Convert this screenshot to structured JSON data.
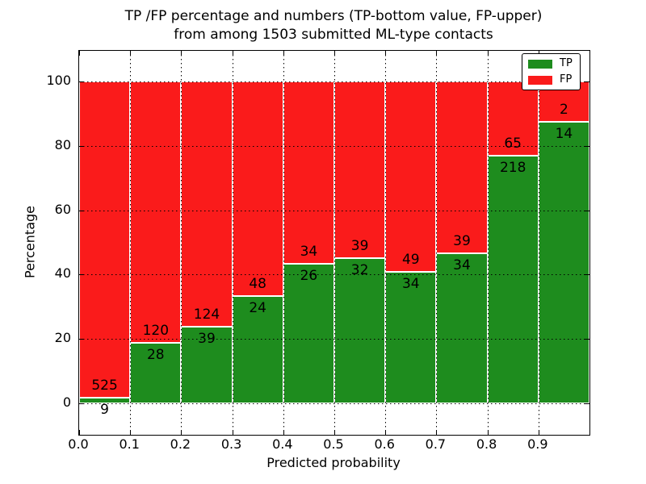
{
  "title": {
    "line1": "TP /FP percentage and numbers (TP-bottom value, FP-upper)",
    "line2": "from among 1503 submitted ML-type contacts"
  },
  "chart_data": {
    "type": "bar",
    "stacked": true,
    "normalized_to_percent": true,
    "total_submitted": 1503,
    "title": "TP /FP percentage and numbers (TP-bottom value, FP-upper) from among 1503 submitted ML-type contacts",
    "xlabel": "Predicted probability",
    "ylabel": "Percentage",
    "x_bin_edges": [
      0.0,
      0.1,
      0.2,
      0.3,
      0.4,
      0.5,
      0.6,
      0.7,
      0.8,
      0.9,
      1.0
    ],
    "xtick_labels": [
      "0.0",
      "0.1",
      "0.2",
      "0.3",
      "0.4",
      "0.5",
      "0.6",
      "0.7",
      "0.8",
      "0.9"
    ],
    "ytick_values": [
      0,
      20,
      40,
      60,
      80,
      100
    ],
    "ylim_display": [
      -9.5,
      109.5
    ],
    "grid": "dotted both axes",
    "legend_position": "upper right",
    "series": [
      {
        "name": "TP",
        "color": "#1e8c1e",
        "counts": [
          9,
          28,
          39,
          24,
          26,
          32,
          34,
          34,
          218,
          14
        ]
      },
      {
        "name": "FP",
        "color": "#fa1b1b",
        "counts": [
          525,
          120,
          124,
          48,
          34,
          39,
          49,
          39,
          65,
          2
        ]
      }
    ],
    "tp_percent_of_bin": [
      1.69,
      18.92,
      23.93,
      33.33,
      43.33,
      45.07,
      40.96,
      46.58,
      77.03,
      87.5
    ],
    "bar_edge_color": "#ffffff",
    "colors": {
      "tp": "#1e8c1e",
      "fp": "#fa1b1b",
      "grid": "#000000",
      "background": "#ffffff"
    }
  }
}
